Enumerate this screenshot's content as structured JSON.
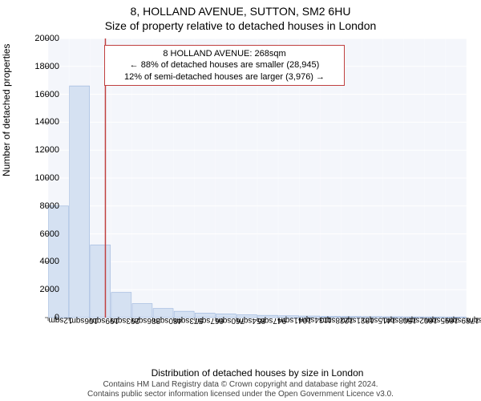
{
  "title_line1": "8, HOLLAND AVENUE, SUTTON, SM2 6HU",
  "title_line2": "Size of property relative to detached houses in London",
  "ylabel": "Number of detached properties",
  "xlabel": "Distribution of detached houses by size in London",
  "chart": {
    "type": "histogram",
    "plot_bg": "#f4f6fb",
    "grid_color": "#ffffff",
    "axis_color": "#666666",
    "bar_fill": "#d5e1f2",
    "bar_stroke": "#9fb8de",
    "marker_line_color": "#c04040",
    "ylim": [
      0,
      20000
    ],
    "ytick_step": 2000,
    "yticks": [
      0,
      2000,
      4000,
      6000,
      8000,
      10000,
      12000,
      14000,
      16000,
      18000,
      20000
    ],
    "xtick_labels": [
      "12sqm",
      "106sqm",
      "199sqm",
      "293sqm",
      "386sqm",
      "480sqm",
      "573sqm",
      "667sqm",
      "760sqm",
      "854sqm",
      "947sqm",
      "1041sqm",
      "1134sqm",
      "1228sqm",
      "1321sqm",
      "1415sqm",
      "1508sqm",
      "1602sqm",
      "1695sqm",
      "1789sqm",
      "1882sqm"
    ],
    "bars": [
      8000,
      16600,
      5200,
      1800,
      1000,
      650,
      450,
      320,
      260,
      200,
      160,
      130,
      110,
      95,
      80,
      70,
      60,
      50,
      45,
      40
    ],
    "marker_x_value": 268,
    "x_min": 12,
    "x_max": 1882
  },
  "annotation": {
    "line1": "8 HOLLAND AVENUE: 268sqm",
    "line2": "← 88% of detached houses are smaller (28,945)",
    "line3": "12% of semi-detached houses are larger (3,976) →"
  },
  "footer_line1": "Contains HM Land Registry data © Crown copyright and database right 2024.",
  "footer_line2": "Contains public sector information licensed under the Open Government Licence v3.0."
}
